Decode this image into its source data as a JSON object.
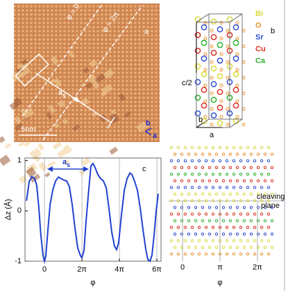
{
  "panel_a": {
    "label": "a",
    "line_labels": [
      "φ = 0",
      "φ = 2π"
    ],
    "vector_label": "a",
    "vector_subscript": "s",
    "scale_bar": "5nm",
    "axis_b": "b",
    "axis_a": "a"
  },
  "panel_b": {
    "label": "b",
    "legend": [
      "Bi",
      "O",
      "Sr",
      "Cu",
      "Ca"
    ],
    "legend_colors": [
      "#d8d840",
      "#e89030",
      "#3050d0",
      "#d83020",
      "#30b030"
    ],
    "c_label": "c/2",
    "axis_b": "b",
    "axis_a": "a"
  },
  "chart_data": {
    "type": "line",
    "panel_label": "c",
    "ylabel": "Δz (Å)",
    "xlabel": "φ",
    "annotation": "a",
    "annotation_subscript": "s",
    "color": "#2040d0",
    "x": [
      -0.96,
      -0.81,
      -0.67,
      -0.52,
      -0.41,
      -0.3,
      -0.19,
      -0.07,
      0,
      0.07,
      0.19,
      0.3,
      0.44,
      0.59,
      0.74,
      0.89,
      1.04,
      1.19,
      1.33,
      1.48,
      1.63,
      1.78,
      1.93,
      2.0,
      2.11,
      2.22,
      2.37,
      2.48,
      2.59,
      2.7,
      2.85,
      3.0,
      3.15,
      3.3,
      3.44,
      3.59,
      3.74,
      3.85,
      3.96,
      4.11,
      4.26,
      4.41,
      4.56,
      4.67,
      4.81,
      4.96,
      5.11,
      5.26,
      5.41,
      5.52,
      5.63,
      5.74,
      5.85,
      5.96,
      6.07
    ],
    "values": [
      0.2,
      0.59,
      0.68,
      0.64,
      0.5,
      0.06,
      -0.49,
      -0.9,
      -1.0,
      -0.9,
      -0.35,
      0.13,
      0.41,
      0.59,
      0.67,
      0.64,
      0.61,
      0.59,
      0.48,
      0.13,
      -0.35,
      -0.74,
      -0.9,
      -0.93,
      -0.79,
      -0.21,
      0.45,
      0.89,
      0.94,
      0.86,
      0.72,
      0.64,
      0.59,
      0.45,
      0.06,
      -0.42,
      -0.7,
      -0.77,
      -0.63,
      -0.08,
      0.41,
      0.64,
      0.75,
      0.72,
      0.59,
      0.41,
      0.06,
      -0.38,
      -0.77,
      -0.97,
      -1.0,
      -0.88,
      -0.49,
      -0.01,
      0.34
    ],
    "xlim": [
      -1.04,
      6.22
    ],
    "ylim": [
      -1,
      1.05
    ],
    "xticks": [
      0,
      {
        "value": 2,
        "label": "2π"
      },
      {
        "value": 4,
        "label": "4π"
      },
      {
        "value": 6,
        "label": "6π"
      }
    ],
    "yticks": [
      1,
      0,
      -1
    ],
    "grid": true
  },
  "panel_d": {
    "cleaving_label": [
      "cleaving",
      "plane"
    ],
    "xticks": [
      "0",
      "π",
      "2π"
    ],
    "xlabel": "φ"
  }
}
